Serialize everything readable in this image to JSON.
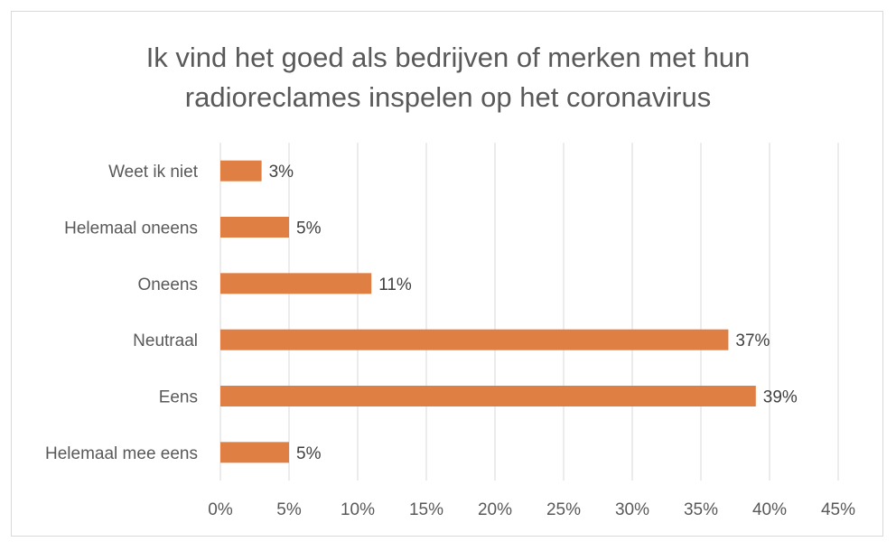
{
  "chart_data": {
    "type": "bar",
    "orientation": "horizontal",
    "title": "Ik vind het goed als bedrijven of merken met hun radioreclames inspelen op het coronavirus",
    "title_lines": [
      "Ik vind het goed als bedrijven of merken met hun",
      "radioreclames inspelen op het coronavirus"
    ],
    "categories": [
      "Weet ik niet",
      "Helemaal oneens",
      "Oneens",
      "Neutraal",
      "Eens",
      "Helemaal mee eens"
    ],
    "values": [
      3,
      5,
      11,
      37,
      39,
      5
    ],
    "data_labels": [
      "3%",
      "5%",
      "11%",
      "37%",
      "39%",
      "5%"
    ],
    "xlim": [
      0,
      45
    ],
    "x_ticks": [
      0,
      5,
      10,
      15,
      20,
      25,
      30,
      35,
      40,
      45
    ],
    "x_tick_labels": [
      "0%",
      "5%",
      "10%",
      "15%",
      "20%",
      "25%",
      "30%",
      "35%",
      "40%",
      "45%"
    ],
    "grid": "vertical",
    "legend": "none",
    "bar_color": "#E07F43",
    "grid_color": "#d9d9d9"
  }
}
